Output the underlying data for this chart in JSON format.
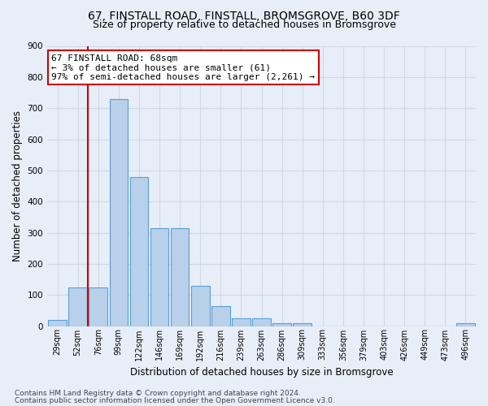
{
  "title1": "67, FINSTALL ROAD, FINSTALL, BROMSGROVE, B60 3DF",
  "title2": "Size of property relative to detached houses in Bromsgrove",
  "xlabel": "Distribution of detached houses by size in Bromsgrove",
  "ylabel": "Number of detached properties",
  "categories": [
    "29sqm",
    "52sqm",
    "76sqm",
    "99sqm",
    "122sqm",
    "146sqm",
    "169sqm",
    "192sqm",
    "216sqm",
    "239sqm",
    "263sqm",
    "286sqm",
    "309sqm",
    "333sqm",
    "356sqm",
    "379sqm",
    "403sqm",
    "426sqm",
    "449sqm",
    "473sqm",
    "496sqm"
  ],
  "values": [
    20,
    125,
    125,
    730,
    480,
    315,
    315,
    130,
    65,
    25,
    25,
    10,
    10,
    0,
    0,
    0,
    0,
    0,
    0,
    0,
    10
  ],
  "bar_color": "#b8d0ea",
  "bar_edge_color": "#5a9fd4",
  "vline_x_idx": 2,
  "vline_color": "#cc0000",
  "annotation_text": "67 FINSTALL ROAD: 68sqm\n← 3% of detached houses are smaller (61)\n97% of semi-detached houses are larger (2,261) →",
  "annotation_box_color": "#ffffff",
  "annotation_edge_color": "#cc0000",
  "ylim": [
    0,
    900
  ],
  "yticks": [
    0,
    100,
    200,
    300,
    400,
    500,
    600,
    700,
    800,
    900
  ],
  "footer1": "Contains HM Land Registry data © Crown copyright and database right 2024.",
  "footer2": "Contains public sector information licensed under the Open Government Licence v3.0.",
  "bg_color": "#e8eef8",
  "plot_bg_color": "#e8eef8",
  "grid_color": "#d0d8e8",
  "title1_fontsize": 10,
  "title2_fontsize": 9,
  "tick_fontsize": 7,
  "ylabel_fontsize": 8.5,
  "xlabel_fontsize": 8.5,
  "annotation_fontsize": 8,
  "footer_fontsize": 6.5
}
